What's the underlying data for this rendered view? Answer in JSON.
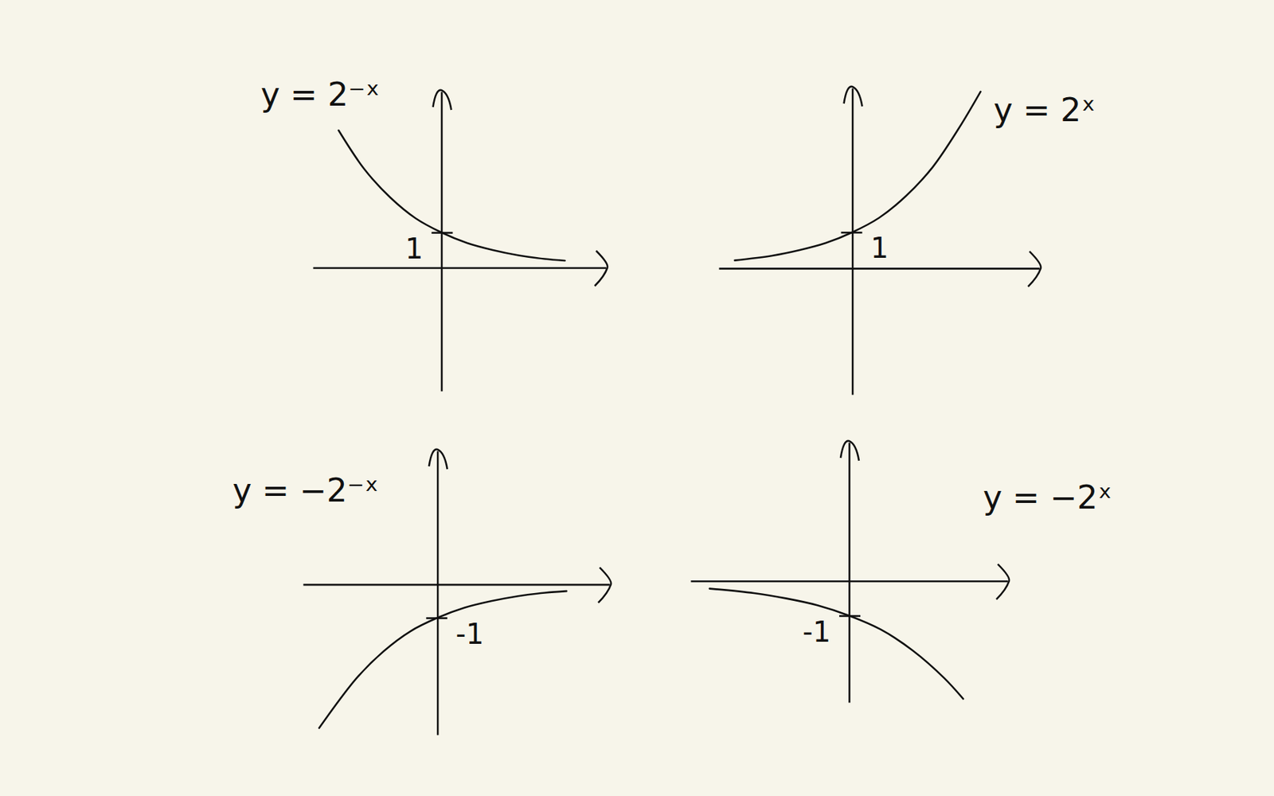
{
  "chart_data": [
    {
      "type": "line",
      "title": "y = 2⁻ˣ",
      "color": "#111111",
      "tick_labels": "y",
      "x": [
        -2.0,
        -1.5,
        -1.0,
        -0.5,
        0,
        0.5,
        1.0,
        1.5,
        2.0,
        2.4
      ],
      "values": [
        3.9,
        2.8,
        2.0,
        1.4,
        1.0,
        0.7,
        0.5,
        0.35,
        0.25,
        0.2
      ],
      "xlim": [
        -2.5,
        3.2
      ],
      "ylim": [
        -3.5,
        5
      ],
      "yticks": [
        1
      ]
    },
    {
      "type": "line",
      "title": "y = 2ˣ",
      "color": "#111111",
      "tick_labels": "y",
      "x": [
        -2.2,
        -1.5,
        -1.0,
        -0.5,
        0,
        0.5,
        1.0,
        1.5,
        2.0,
        2.4
      ],
      "values": [
        0.22,
        0.35,
        0.5,
        0.7,
        1.0,
        1.4,
        2.0,
        2.8,
        3.9,
        4.9
      ],
      "xlim": [
        -2.5,
        3.5
      ],
      "ylim": [
        -3.5,
        5
      ],
      "yticks": [
        1
      ]
    },
    {
      "type": "line",
      "title": "y = −2⁻ˣ",
      "color": "#111111",
      "tick_labels": "y",
      "x": [
        -2.2,
        -1.5,
        -1.0,
        -0.5,
        0,
        0.5,
        1.0,
        1.5,
        2.0,
        2.4
      ],
      "values": [
        -4.3,
        -2.8,
        -2.0,
        -1.4,
        -1.0,
        -0.7,
        -0.5,
        -0.35,
        -0.25,
        -0.2
      ],
      "xlim": [
        -2.5,
        3.2
      ],
      "ylim": [
        -4.5,
        4
      ],
      "yticks": [
        -1
      ]
    },
    {
      "type": "line",
      "title": "y = −2ˣ",
      "color": "#111111",
      "tick_labels": "y",
      "x": [
        -2.2,
        -1.5,
        -1.0,
        -0.5,
        0,
        0.5,
        1.0,
        1.5,
        1.8
      ],
      "values": [
        -0.22,
        -0.35,
        -0.5,
        -0.7,
        -1.0,
        -1.4,
        -2.0,
        -2.8,
        -3.4
      ],
      "xlim": [
        -2.5,
        2.5
      ],
      "ylim": [
        -3.5,
        4
      ],
      "yticks": [
        -1
      ]
    }
  ]
}
